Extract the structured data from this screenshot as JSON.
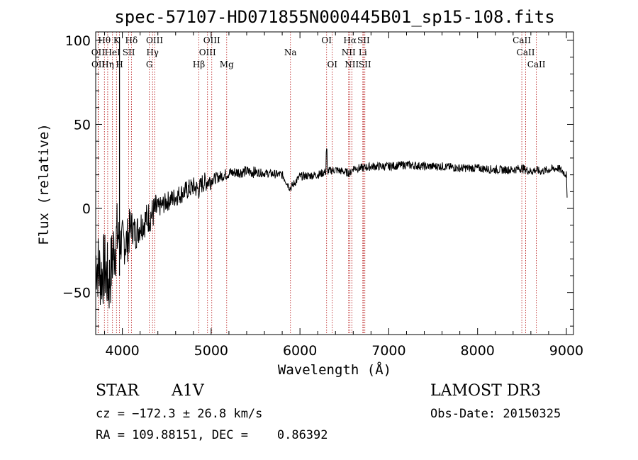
{
  "chart_data": {
    "type": "line",
    "title": "spec-57107-HD071855N000445B01_sp15-108.fits",
    "xlabel": "Wavelength (Å)",
    "ylabel": "Flux (relative)",
    "xlim": [
      3700,
      9080
    ],
    "ylim": [
      -75,
      105
    ],
    "xticks": [
      4000,
      5000,
      6000,
      7000,
      8000,
      9000
    ],
    "yticks": [
      -50,
      0,
      50,
      100
    ],
    "spectrum_anchor_points": {
      "x": [
        3700,
        3760,
        3800,
        3850,
        3900,
        3950,
        3970,
        4000,
        4050,
        4100,
        4150,
        4200,
        4300,
        4400,
        4500,
        4600,
        4700,
        4800,
        4861,
        4900,
        5000,
        5100,
        5200,
        5400,
        5600,
        5800,
        5890,
        6000,
        6200,
        6300,
        6400,
        6563,
        6600,
        6700,
        6800,
        7000,
        7200,
        7400,
        7600,
        7800,
        8000,
        8200,
        8400,
        8500,
        8542,
        8600,
        8662,
        8700,
        8800,
        8900,
        8960,
        9000,
        9010
      ],
      "y": [
        -30,
        -40,
        -35,
        -45,
        -25,
        -15,
        -20,
        -20,
        -20,
        -10,
        -15,
        -10,
        -5,
        0,
        4,
        7,
        10,
        13,
        11,
        15,
        17,
        19,
        21,
        22,
        21,
        20,
        12,
        19,
        20,
        22,
        23,
        21,
        24,
        24,
        25,
        25,
        26,
        25,
        25,
        24,
        24,
        23,
        23,
        24,
        23,
        22,
        23,
        22,
        23,
        24,
        22,
        20,
        0
      ]
    },
    "spike": {
      "x": 3968,
      "ymin": -40,
      "ymax": 102
    },
    "emission_lines": [
      {
        "label": "Hθ",
        "wave": 3798,
        "row": 0
      },
      {
        "label": "K",
        "wave": 3934,
        "row": 0
      },
      {
        "label": "Hδ",
        "wave": 4102,
        "row": 0
      },
      {
        "label": "OIII",
        "wave": 4363,
        "row": 0
      },
      {
        "label": "OIII",
        "wave": 5007,
        "row": 0
      },
      {
        "label": "OI",
        "wave": 6300,
        "row": 0
      },
      {
        "label": "Hα",
        "wave": 6563,
        "row": 0
      },
      {
        "label": "SII",
        "wave": 6716,
        "row": 0
      },
      {
        "label": "CaII",
        "wave": 8498,
        "row": 0
      },
      {
        "label": "OII",
        "wave": 3727,
        "row": 1
      },
      {
        "label": "HeI",
        "wave": 3889,
        "row": 1
      },
      {
        "label": "SII",
        "wave": 4072,
        "row": 1
      },
      {
        "label": "Hγ",
        "wave": 4340,
        "row": 1
      },
      {
        "label": "OIII",
        "wave": 4959,
        "row": 1
      },
      {
        "label": "Na",
        "wave": 5893,
        "row": 1
      },
      {
        "label": "NII",
        "wave": 6548,
        "row": 1
      },
      {
        "label": "Li",
        "wave": 6708,
        "row": 1
      },
      {
        "label": "CaII",
        "wave": 8542,
        "row": 1
      },
      {
        "label": "OII",
        "wave": 3729,
        "row": 2
      },
      {
        "label": "Hη",
        "wave": 3835,
        "row": 2
      },
      {
        "label": "H",
        "wave": 3968,
        "row": 2
      },
      {
        "label": "G",
        "wave": 4304,
        "row": 2
      },
      {
        "label": "Hβ",
        "wave": 4861,
        "row": 2
      },
      {
        "label": "Mg",
        "wave": 5175,
        "row": 2
      },
      {
        "label": "OI",
        "wave": 6364,
        "row": 2
      },
      {
        "label": "NII",
        "wave": 6584,
        "row": 2
      },
      {
        "label": "SII",
        "wave": 6731,
        "row": 2
      },
      {
        "label": "CaII",
        "wave": 8662,
        "row": 2
      }
    ]
  },
  "info": {
    "object_class": "STAR",
    "subclass": "A1V",
    "survey": "LAMOST DR3",
    "redshift": "cz = −172.3 ± 26.8 km/s",
    "obs_date": "Obs-Date: 20150325",
    "coords": "RA = 109.88151, DEC =    0.86392"
  },
  "colors": {
    "line_markers": "#b00000",
    "spectrum": "#000000",
    "axes": "#000000"
  }
}
